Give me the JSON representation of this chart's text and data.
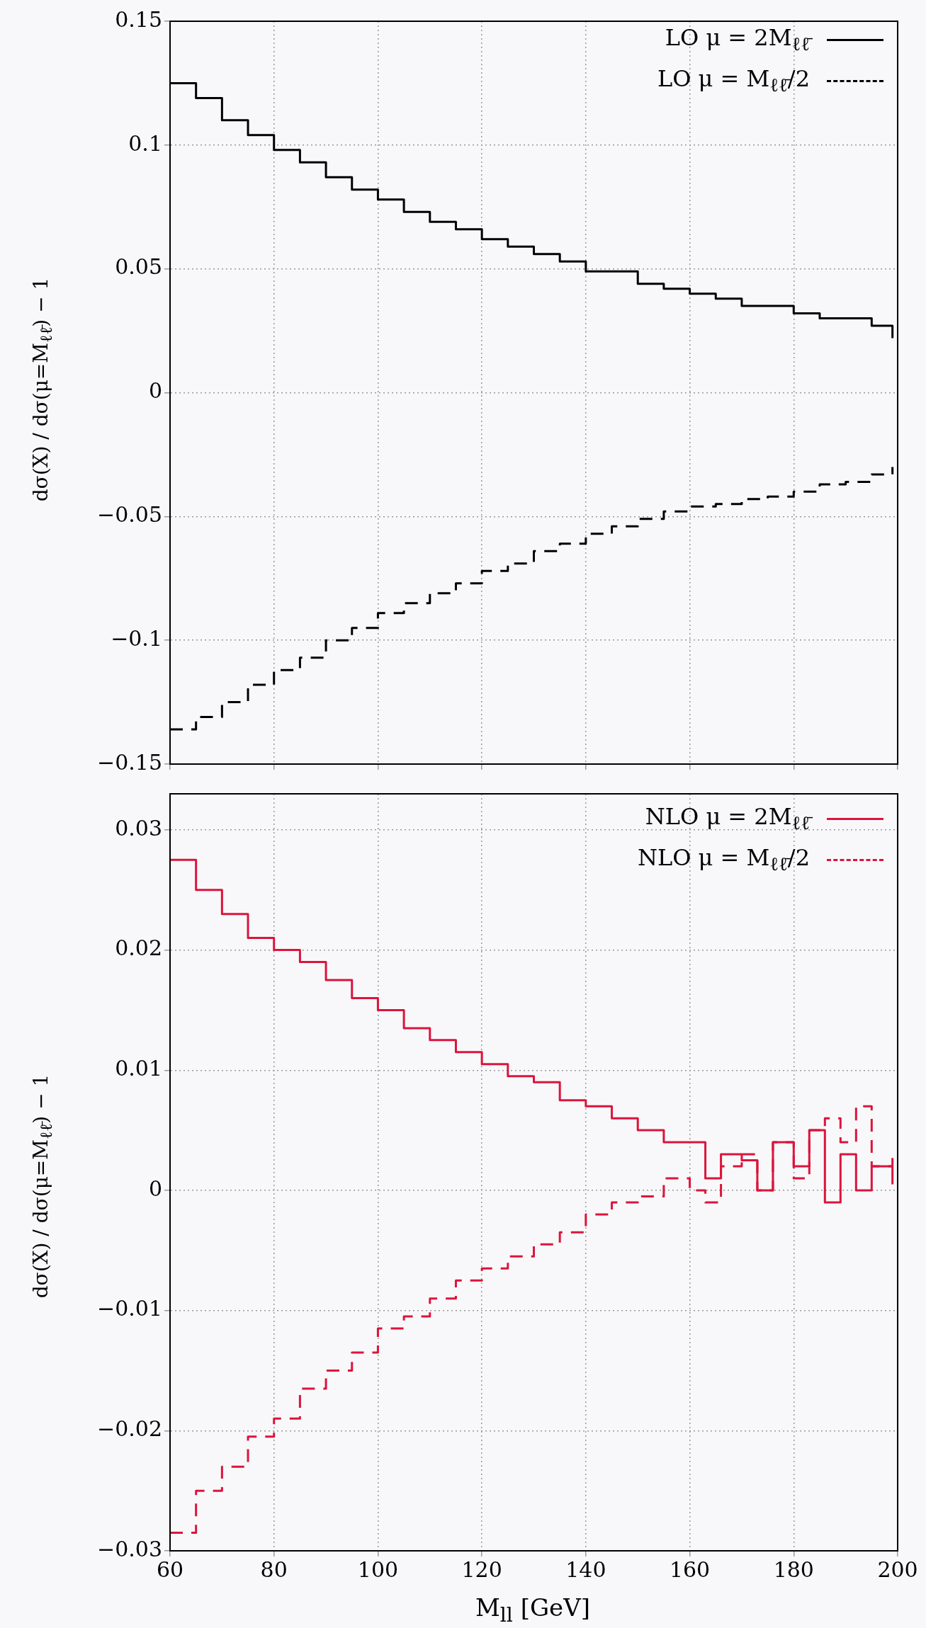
{
  "chart_data": [
    {
      "type": "step",
      "ylabel": "dσ(X) / dσ(μ=M$_{ℓℓ̄}$) − 1",
      "xlim": [
        60,
        200
      ],
      "xticks": [
        60,
        80,
        100,
        120,
        140,
        160,
        180,
        200
      ],
      "ylim": [
        -0.15,
        0.15
      ],
      "yticks": [
        -0.15,
        -0.1,
        -0.05,
        0,
        0.05,
        0.1,
        0.15
      ],
      "grid": true,
      "legend": "top right",
      "tick_labels": "y",
      "x": [
        60,
        65,
        70,
        75,
        80,
        85,
        90,
        95,
        100,
        105,
        110,
        115,
        120,
        125,
        130,
        135,
        140,
        145,
        150,
        155,
        160,
        165,
        170,
        175,
        180,
        185,
        190,
        195,
        199
      ],
      "series": [
        {
          "name": "LO μ = 2M$_{ℓℓ̄}$",
          "color": "#000000",
          "line_style": "solid",
          "values": [
            0.125,
            0.119,
            0.11,
            0.104,
            0.098,
            0.093,
            0.087,
            0.082,
            0.078,
            0.073,
            0.069,
            0.066,
            0.062,
            0.059,
            0.056,
            0.053,
            0.049,
            0.049,
            0.044,
            0.042,
            0.04,
            0.038,
            0.035,
            0.035,
            0.032,
            0.03,
            0.03,
            0.027,
            0.022
          ]
        },
        {
          "name": "LO μ = M$_{ℓℓ̄}$/2",
          "color": "#000000",
          "line_style": "dashed",
          "values": [
            -0.136,
            -0.131,
            -0.125,
            -0.118,
            -0.112,
            -0.107,
            -0.1,
            -0.095,
            -0.089,
            -0.085,
            -0.081,
            -0.077,
            -0.072,
            -0.069,
            -0.064,
            -0.061,
            -0.057,
            -0.054,
            -0.051,
            -0.048,
            -0.046,
            -0.045,
            -0.043,
            -0.042,
            -0.04,
            -0.037,
            -0.036,
            -0.033,
            -0.03
          ]
        }
      ]
    },
    {
      "type": "step",
      "xlabel": "M$_{ll}$ [GeV]",
      "ylabel": "dσ(X) / dσ(μ=M$_{ℓℓ̄}$) − 1",
      "xlim": [
        60,
        200
      ],
      "xticks": [
        60,
        80,
        100,
        120,
        140,
        160,
        180,
        200
      ],
      "ylim": [
        -0.03,
        0.033
      ],
      "yticks": [
        -0.03,
        -0.02,
        -0.01,
        0,
        0.01,
        0.02,
        0.03
      ],
      "grid": true,
      "legend": "top right",
      "x": [
        60,
        65,
        70,
        75,
        80,
        85,
        90,
        95,
        100,
        105,
        110,
        115,
        120,
        125,
        130,
        135,
        140,
        145,
        150,
        155,
        160,
        163,
        166,
        170,
        173,
        176,
        180,
        183,
        186,
        189,
        192,
        195,
        199
      ],
      "series": [
        {
          "name": "NLO μ = 2M$_{ℓℓ̄}$",
          "color": "#dc143c",
          "line_style": "solid",
          "values": [
            0.0275,
            0.025,
            0.023,
            0.021,
            0.02,
            0.019,
            0.0175,
            0.016,
            0.015,
            0.0135,
            0.0125,
            0.0115,
            0.0105,
            0.0095,
            0.009,
            0.0075,
            0.007,
            0.006,
            0.005,
            0.004,
            0.004,
            0.001,
            0.003,
            0.0025,
            0,
            0.004,
            0.002,
            0.005,
            -0.001,
            0.003,
            0,
            0.002,
            0.0005
          ]
        },
        {
          "name": "NLO μ = M$_{ℓℓ̄}$/2",
          "color": "#dc143c",
          "line_style": "dashed",
          "values": [
            -0.0285,
            -0.025,
            -0.023,
            -0.0205,
            -0.019,
            -0.0165,
            -0.015,
            -0.0135,
            -0.0115,
            -0.0105,
            -0.009,
            -0.0075,
            -0.0065,
            -0.0055,
            -0.0045,
            -0.0035,
            -0.002,
            -0.001,
            -0.0005,
            0.001,
            0,
            -0.001,
            0.002,
            0.003,
            0,
            0.004,
            0.001,
            0.005,
            0.006,
            0.004,
            0.007,
            0.002,
            0.003
          ]
        }
      ]
    }
  ]
}
